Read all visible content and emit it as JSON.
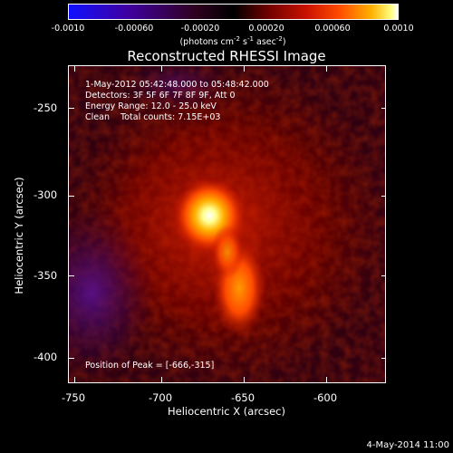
{
  "colorbar": {
    "ticks": [
      "-0.0010",
      "-0.00060",
      "-0.00020",
      "0.00020",
      "0.00060",
      "0.0010"
    ],
    "unit_text": "(photons cm",
    "unit_exp1": "-2",
    "unit_mid1": " s",
    "unit_exp2": "-1",
    "unit_mid2": " asec",
    "unit_exp3": "-2",
    "unit_end": ")"
  },
  "title": "Reconstructed RHESSI Image",
  "annotations": {
    "time_range": "1-May-2012 05:42:48.000 to 05:48:42.000",
    "detectors": "Detectors: 3F 5F 6F 7F 8F 9F, Att 0",
    "energy": "Energy Range: 12.0 - 25.0 keV",
    "clean": "Clean    Total counts: 7.15E+03",
    "peak": "Position of Peak = [-666,-315]"
  },
  "axes": {
    "xlabel": "Heliocentric X (arcsec)",
    "ylabel": "Heliocentric Y (arcsec)",
    "xticks": [
      "-750",
      "-700",
      "-650",
      "-600"
    ],
    "yticks": [
      "-250",
      "-300",
      "-350",
      "-400"
    ]
  },
  "timestamp": "4-May-2014 11:00",
  "chart_data": {
    "type": "heatmap",
    "title": "Reconstructed RHESSI Image",
    "xlabel": "Heliocentric X (arcsec)",
    "ylabel": "Heliocentric Y (arcsec)",
    "xlim": [
      -752,
      -618
    ],
    "ylim": [
      -417,
      -218
    ],
    "xticks": [
      -750,
      -700,
      -650,
      -600
    ],
    "yticks": [
      -250,
      -300,
      -350,
      -400
    ],
    "colorbar_range": [
      -0.001,
      0.001
    ],
    "peak": [
      -666,
      -315
    ],
    "sources": [
      {
        "x": -666,
        "y": -315,
        "peak": 0.00098
      },
      {
        "x": -660,
        "y": -340,
        "peak": 0.0006
      },
      {
        "x": -655,
        "y": -355,
        "peak": 0.0004
      }
    ]
  }
}
